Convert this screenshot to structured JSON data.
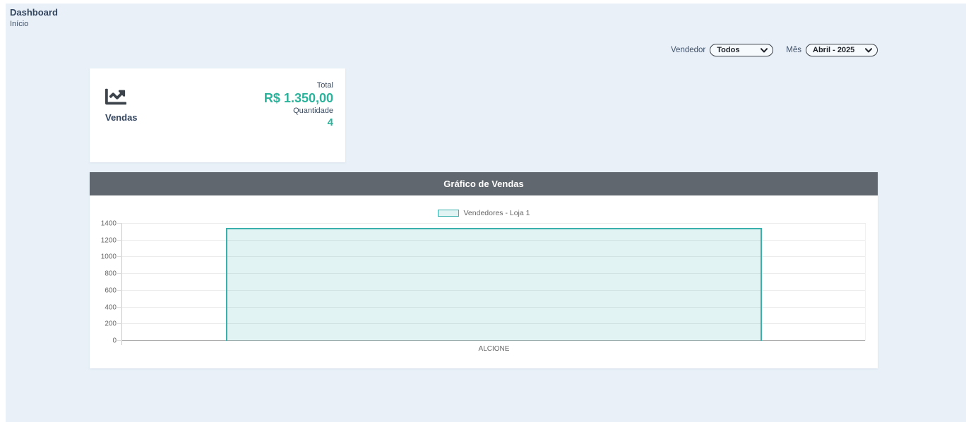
{
  "page": {
    "title": "Dashboard",
    "breadcrumb": "Início"
  },
  "filters": {
    "vendedor": {
      "label": "Vendedor",
      "value": "Todos"
    },
    "mes": {
      "label": "Mês",
      "value": "Abril - 2025"
    }
  },
  "summary_card": {
    "label": "Vendas",
    "icon": "chart-line-icon",
    "total_label": "Total",
    "total_value": "R$ 1.350,00",
    "quantity_label": "Quantidade",
    "quantity_value": "4",
    "accent_color": "#2bb39b"
  },
  "chart_panel": {
    "title": "Gráfico de Vendas"
  },
  "chart_data": {
    "type": "bar",
    "title": "Gráfico de Vendas",
    "categories": [
      "ALCIONE"
    ],
    "series": [
      {
        "name": "Vendedores - Loja 1",
        "values": [
          1350
        ]
      }
    ],
    "xlabel": "",
    "ylabel": "",
    "ylim": [
      0,
      1400
    ],
    "yticks": [
      0,
      200,
      400,
      600,
      800,
      1000,
      1200,
      1400
    ],
    "grid": true,
    "legend_position": "top",
    "bar_fill": "rgba(66,180,176,0.16)",
    "bar_border": "#39b0ac",
    "bar_width_ratio": 0.72
  },
  "colors": {
    "page_background": "#e9f0f8",
    "panel_header": "#61676e",
    "accent_teal": "#2bb39b"
  }
}
